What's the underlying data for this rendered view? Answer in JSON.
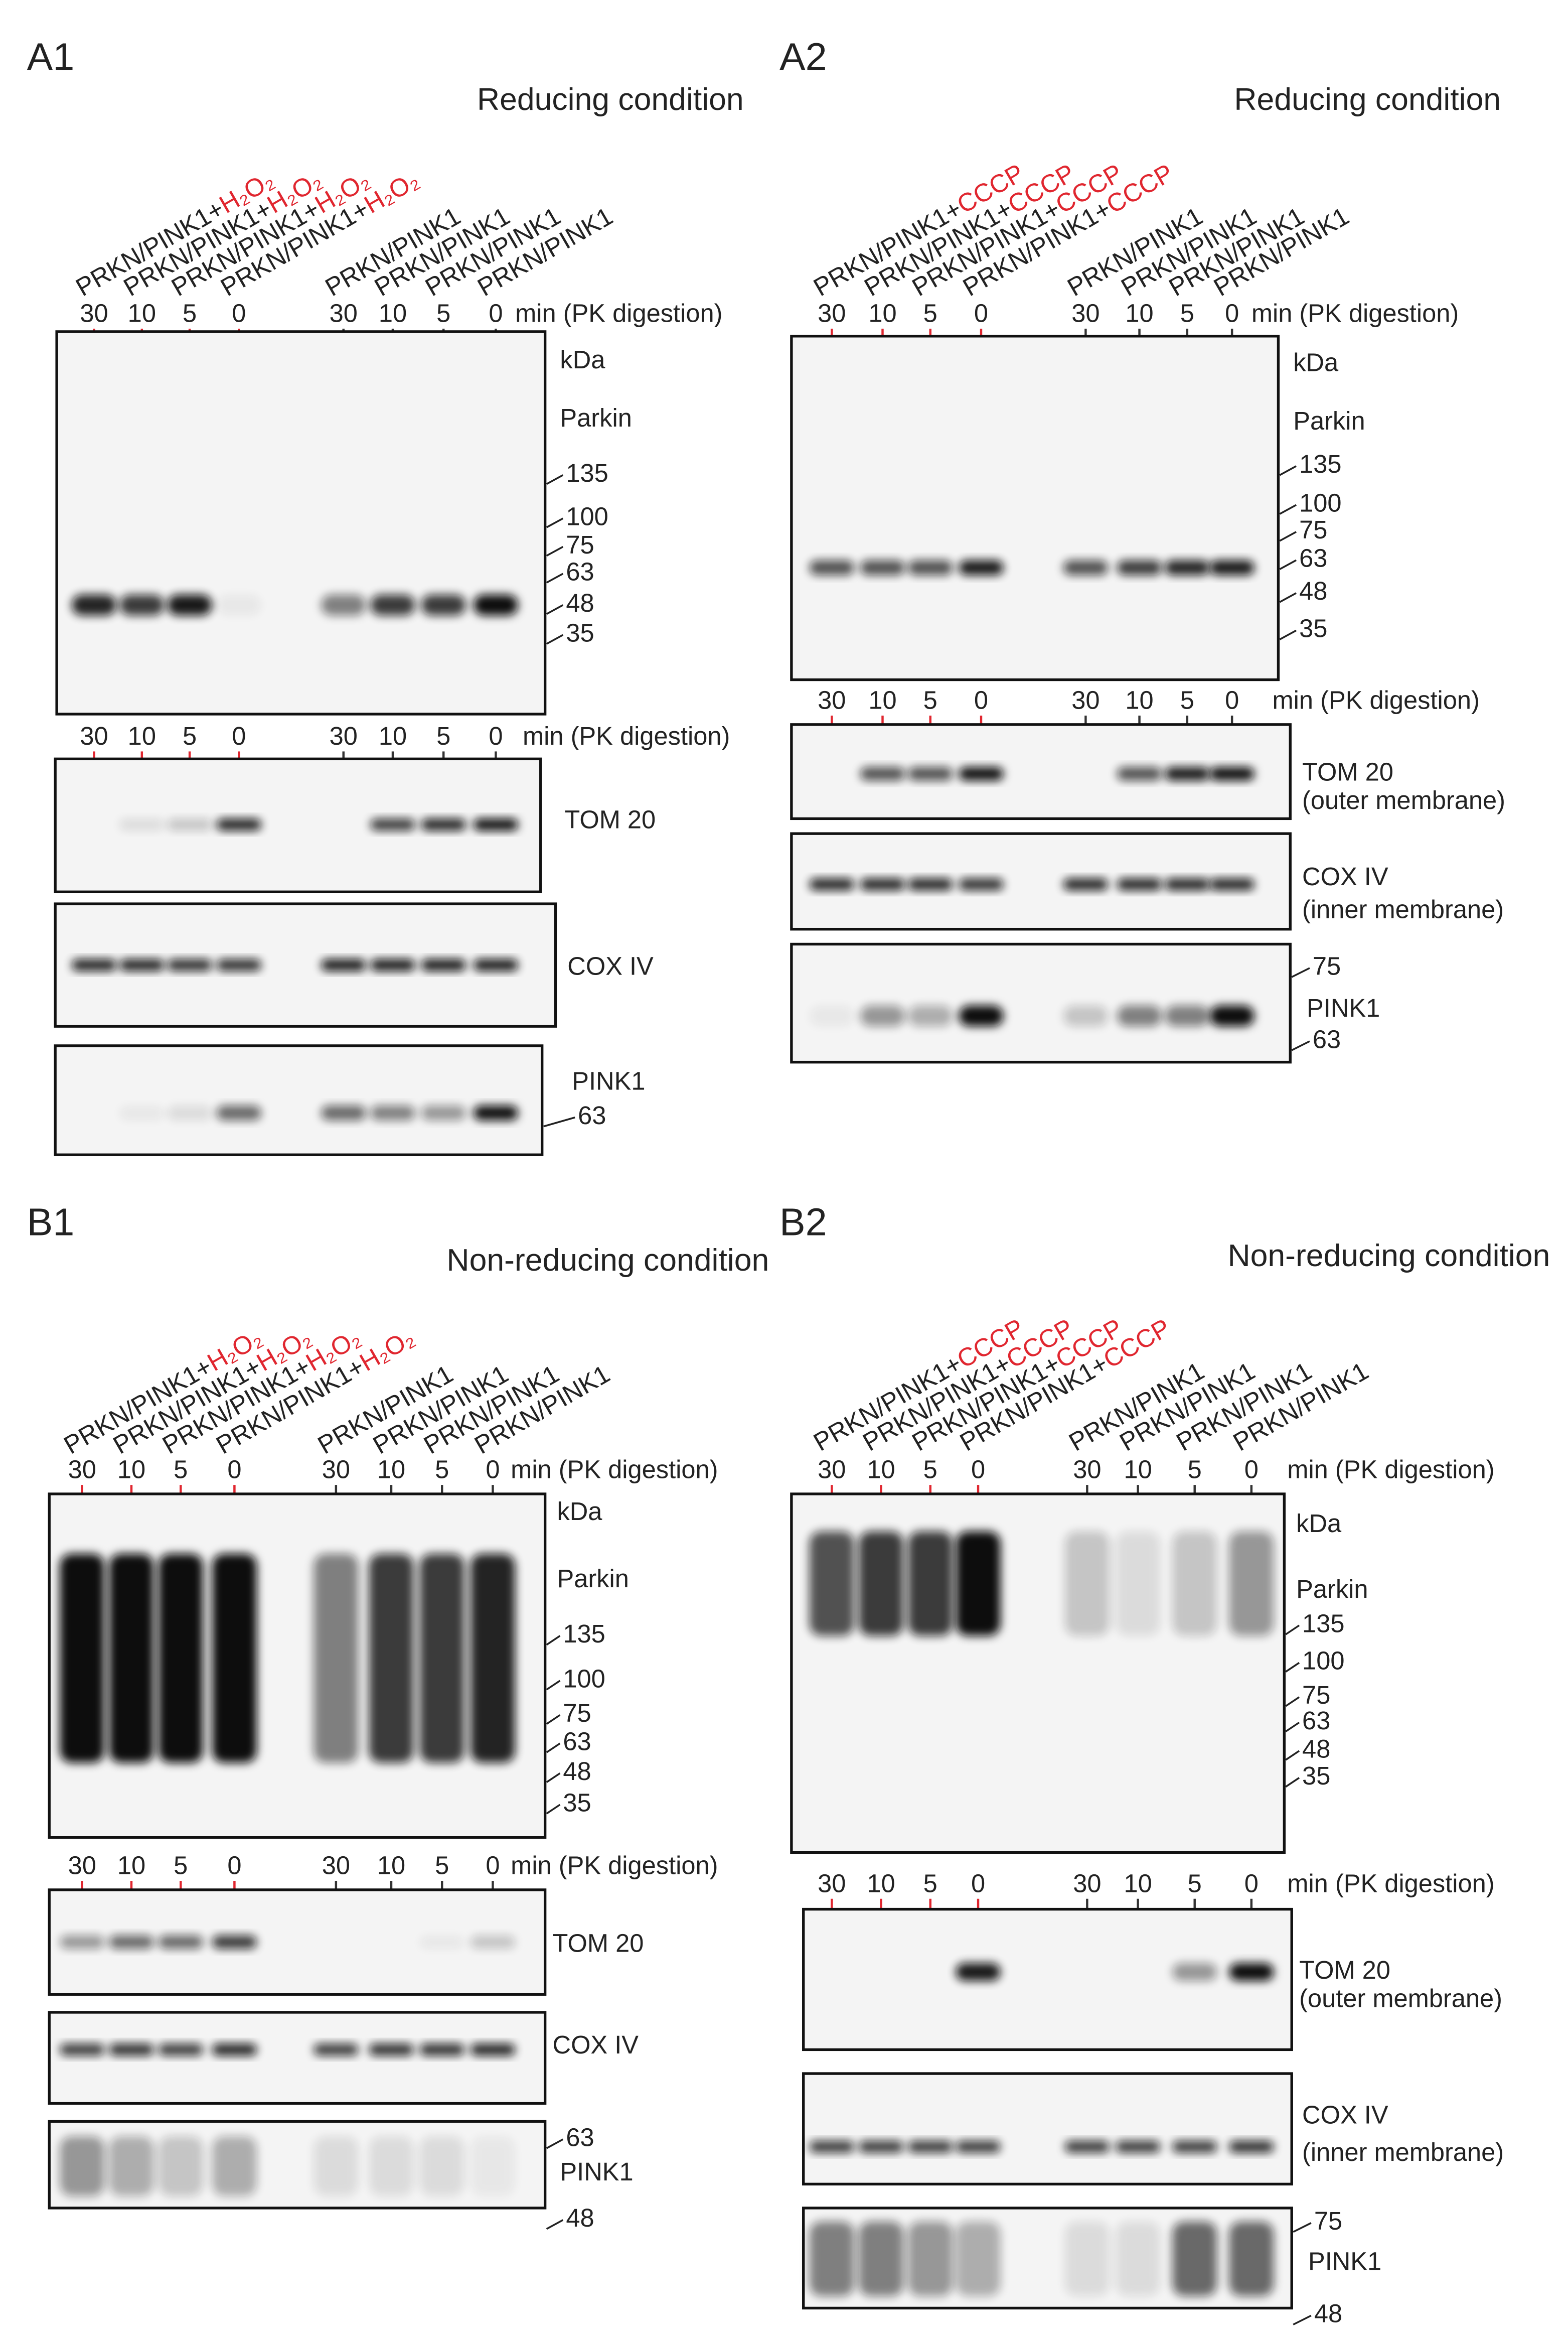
{
  "panels": [
    {
      "label": "A1",
      "condition": "Reducing condition",
      "time_unit": "min (PK digestion)",
      "lanes": [
        {
          "strain": "PRKN/PINK1+",
          "treatment": "H₂O₂"
        },
        {
          "strain": "PRKN/PINK1+",
          "treatment": "H₂O₂"
        },
        {
          "strain": "PRKN/PINK1+",
          "treatment": "H₂O₂"
        },
        {
          "strain": "PRKN/PINK1+",
          "treatment": "H₂O₂"
        },
        {
          "strain": "PRKN/PINK1"
        },
        {
          "strain": "PRKN/PINK1"
        },
        {
          "strain": "PRKN/PINK1"
        },
        {
          "strain": "PRKN/PINK1"
        }
      ],
      "time_rows": [
        [
          {
            "label": "30",
            "color": "#3b9bd6"
          },
          {
            "label": "10",
            "color": "#3b9bd6"
          },
          {
            "label": "5",
            "color": "#3b9bd6"
          },
          {
            "label": "0",
            "color": "#222222"
          },
          {
            "label": "30",
            "color": "#3b9bd6"
          },
          {
            "label": "10",
            "color": "#222222"
          },
          {
            "label": "5",
            "color": "#222222"
          },
          {
            "label": "0",
            "color": "#222222"
          }
        ],
        [
          {
            "label": "30",
            "color": "#3b9bd6"
          },
          {
            "label": "10",
            "color": "#3b9bd6"
          },
          {
            "label": "5",
            "color": "#3b9bd6"
          },
          {
            "label": "0",
            "color": "#222222"
          },
          {
            "label": "30",
            "color": "#3b9bd6"
          },
          {
            "label": "10",
            "color": "#222222"
          },
          {
            "label": "5",
            "color": "#222222"
          },
          {
            "label": "0",
            "color": "#222222"
          }
        ]
      ],
      "blots": [
        {
          "unit": "kDa",
          "name": "Parkin",
          "markers": [
            "135",
            "100",
            "75",
            "63",
            "48",
            "35"
          ]
        },
        {
          "name": "TOM 20"
        },
        {
          "name": "COX IV"
        },
        {
          "name": "PINK1",
          "markers": [
            "63"
          ]
        }
      ]
    },
    {
      "label": "A2",
      "condition": "Reducing condition",
      "time_unit": "min (PK digestion)",
      "lanes": [
        {
          "strain": "PRKN/PINK1+",
          "treatment": "CCCP"
        },
        {
          "strain": "PRKN/PINK1+",
          "treatment": "CCCP"
        },
        {
          "strain": "PRKN/PINK1+",
          "treatment": "CCCP"
        },
        {
          "strain": "PRKN/PINK1+",
          "treatment": "CCCP"
        },
        {
          "strain": "PRKN/PINK1"
        },
        {
          "strain": "PRKN/PINK1"
        },
        {
          "strain": "PRKN/PINK1"
        },
        {
          "strain": "PRKN/PINK1"
        }
      ],
      "time_rows": [
        [
          {
            "label": "30",
            "color": "#3b9bd6"
          },
          {
            "label": "10",
            "color": "#222222"
          },
          {
            "label": "5",
            "color": "#222222"
          },
          {
            "label": "0",
            "color": "#222222"
          },
          {
            "label": "30",
            "color": "#3b9bd6"
          },
          {
            "label": "10",
            "color": "#222222"
          },
          {
            "label": "5",
            "color": "#222222"
          },
          {
            "label": "0",
            "color": "#222222"
          }
        ],
        [
          {
            "label": "30",
            "color": "#3b9bd6"
          },
          {
            "label": "10",
            "color": "#222222"
          },
          {
            "label": "5",
            "color": "#222222"
          },
          {
            "label": "0",
            "color": "#222222"
          },
          {
            "label": "30",
            "color": "#3b9bd6"
          },
          {
            "label": "10",
            "color": "#222222"
          },
          {
            "label": "5",
            "color": "#222222"
          },
          {
            "label": "0",
            "color": "#222222"
          }
        ]
      ],
      "blots": [
        {
          "unit": "kDa",
          "name": "Parkin",
          "markers": [
            "135",
            "100",
            "75",
            "63",
            "48",
            "35"
          ]
        },
        {
          "name": "TOM 20",
          "note": "(outer membrane)"
        },
        {
          "name": "COX IV",
          "note": "(inner membrane)"
        },
        {
          "name": "PINK1",
          "markers": [
            "75",
            "63"
          ]
        }
      ]
    },
    {
      "label": "B1",
      "condition": "Non-reducing condition",
      "time_unit": "min (PK digestion)",
      "lanes": [
        {
          "strain": "PRKN/PINK1+",
          "treatment": "H₂O₂"
        },
        {
          "strain": "PRKN/PINK1+",
          "treatment": "H₂O₂"
        },
        {
          "strain": "PRKN/PINK1+",
          "treatment": "H₂O₂"
        },
        {
          "strain": "PRKN/PINK1+",
          "treatment": "H₂O₂"
        },
        {
          "strain": "PRKN/PINK1"
        },
        {
          "strain": "PRKN/PINK1"
        },
        {
          "strain": "PRKN/PINK1"
        },
        {
          "strain": "PRKN/PINK1"
        }
      ],
      "time_rows": [
        [
          {
            "label": "30",
            "color": "#222222"
          },
          {
            "label": "10",
            "color": "#222222"
          },
          {
            "label": "5",
            "color": "#222222"
          },
          {
            "label": "0",
            "color": "#222222"
          },
          {
            "label": "30",
            "color": "#3b9bd6"
          },
          {
            "label": "10",
            "color": "#3b9bd6"
          },
          {
            "label": "5",
            "color": "#3b9bd6"
          },
          {
            "label": "0",
            "color": "#222222"
          }
        ],
        [
          {
            "label": "30",
            "color": "#222222"
          },
          {
            "label": "10",
            "color": "#222222"
          },
          {
            "label": "5",
            "color": "#222222"
          },
          {
            "label": "0",
            "color": "#222222"
          },
          {
            "label": "30",
            "color": "#3b9bd6"
          },
          {
            "label": "10",
            "color": "#3b9bd6"
          },
          {
            "label": "5",
            "color": "#3b9bd6"
          },
          {
            "label": "0",
            "color": "#222222"
          }
        ]
      ],
      "blots": [
        {
          "unit": "kDa",
          "name": "Parkin",
          "markers": [
            "135",
            "100",
            "75",
            "63",
            "48",
            "35"
          ]
        },
        {
          "name": "TOM 20"
        },
        {
          "name": "COX IV"
        },
        {
          "name": "PINK1",
          "markers": [
            "63",
            "48"
          ]
        }
      ]
    },
    {
      "label": "B2",
      "condition": "Non-reducing condition",
      "time_unit": "min (PK digestion)",
      "lanes": [
        {
          "strain": "PRKN/PINK1+",
          "treatment": "CCCP"
        },
        {
          "strain": "PRKN/PINK1+",
          "treatment": "CCCP"
        },
        {
          "strain": "PRKN/PINK1+",
          "treatment": "CCCP"
        },
        {
          "strain": "PRKN/PINK1+",
          "treatment": "CCCP"
        },
        {
          "strain": "PRKN/PINK1"
        },
        {
          "strain": "PRKN/PINK1"
        },
        {
          "strain": "PRKN/PINK1"
        },
        {
          "strain": "PRKN/PINK1"
        }
      ],
      "time_rows": [
        [
          {
            "label": "30",
            "color": "#3b9bd6"
          },
          {
            "label": "10",
            "color": "#3b9bd6"
          },
          {
            "label": "5",
            "color": "#3b9bd6"
          },
          {
            "label": "0",
            "color": "#222222"
          },
          {
            "label": "30",
            "color": "#3b9bd6"
          },
          {
            "label": "10",
            "color": "#3b9bd6"
          },
          {
            "label": "5",
            "color": "#222222"
          },
          {
            "label": "0",
            "color": "#222222"
          }
        ],
        [
          {
            "label": "30",
            "color": "#3b9bd6"
          },
          {
            "label": "10",
            "color": "#3b9bd6"
          },
          {
            "label": "5",
            "color": "#3b9bd6"
          },
          {
            "label": "0",
            "color": "#222222"
          },
          {
            "label": "30",
            "color": "#3b9bd6"
          },
          {
            "label": "10",
            "color": "#3b9bd6"
          },
          {
            "label": "5",
            "color": "#222222"
          },
          {
            "label": "0",
            "color": "#222222"
          }
        ]
      ],
      "blots": [
        {
          "unit": "kDa",
          "name": "Parkin",
          "markers": [
            "135",
            "100",
            "75",
            "63",
            "48",
            "35"
          ]
        },
        {
          "name": "TOM 20",
          "note": "(outer membrane)"
        },
        {
          "name": "COX IV",
          "note": "(inner membrane)"
        },
        {
          "name": "PINK1",
          "markers": [
            "75",
            "48"
          ]
        }
      ]
    }
  ]
}
